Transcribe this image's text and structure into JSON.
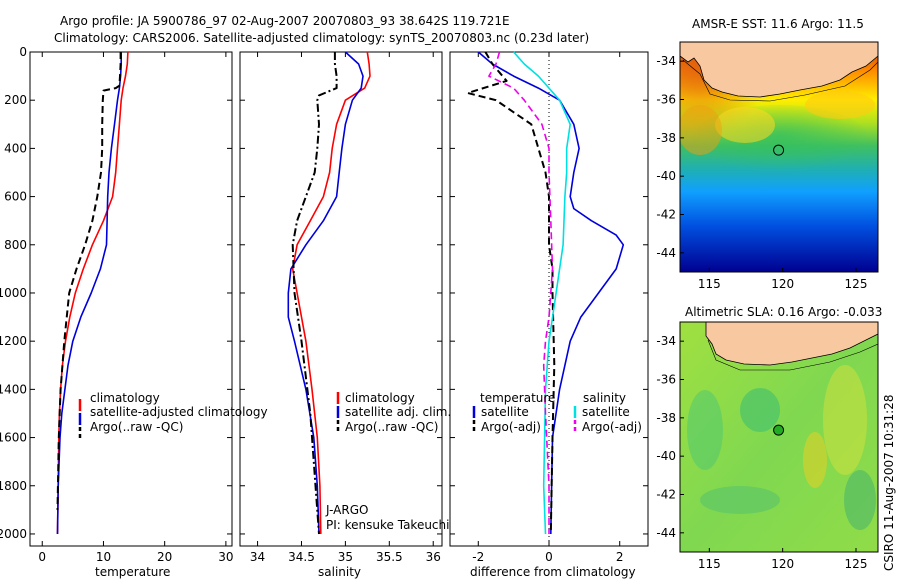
{
  "title": {
    "line1": "Argo profile: JA 5900786_97 02-Aug-2007 20070803_93 38.642S 119.721E",
    "line2": "Climatology: CARS2006. Satellite-adjusted climatology: synTS_20070803.nc (0.23d later)"
  },
  "side_label": "CSIRO 11-Aug-2007 10:31:28",
  "institution": {
    "line1": "J-ARGO",
    "line2": "PI: kensuke Takeuchi"
  },
  "chart_data": [
    {
      "id": "temperature",
      "type": "line",
      "xlabel": "temperature",
      "xlim": [
        -2,
        31
      ],
      "ylim": [
        2050,
        0
      ],
      "xticks": [
        0,
        10,
        20,
        30
      ],
      "yticks": [
        0,
        200,
        400,
        600,
        800,
        1000,
        1200,
        1400,
        1600,
        1800,
        2000
      ],
      "legend": {
        "placement": "lower-right",
        "entries": [
          "climatology",
          "satellite-adjusted climatology",
          "Argo(..raw -QC)"
        ]
      },
      "series": [
        {
          "name": "climatology",
          "color": "#ff0000",
          "dash": "solid",
          "x": [
            14.0,
            13.9,
            13.6,
            13.2,
            12.9,
            12.6,
            12.3,
            12.0,
            11.5,
            10.0,
            8.2,
            6.7,
            5.4,
            4.5,
            3.8,
            3.3,
            3.0,
            2.8,
            2.7,
            2.6,
            2.5
          ],
          "y": [
            0,
            50,
            100,
            150,
            200,
            300,
            400,
            500,
            600,
            700,
            800,
            900,
            1000,
            1100,
            1200,
            1300,
            1400,
            1500,
            1600,
            1800,
            2000
          ]
        },
        {
          "name": "satellite-adjusted climatology",
          "color": "#0000dd",
          "dash": "solid",
          "x": [
            12.9,
            12.9,
            12.8,
            12.6,
            12.3,
            11.8,
            11.3,
            10.9,
            10.7,
            10.6,
            10.5,
            9.5,
            8.0,
            6.3,
            5.0,
            4.2,
            3.7,
            3.2,
            2.9,
            2.6,
            2.5
          ],
          "y": [
            0,
            50,
            100,
            150,
            200,
            300,
            400,
            500,
            600,
            700,
            800,
            900,
            1000,
            1100,
            1200,
            1300,
            1400,
            1500,
            1600,
            1800,
            2000
          ]
        },
        {
          "name": "Argo(..raw -QC)",
          "color": "#000000",
          "dash": "dash",
          "x": [
            12.8,
            12.8,
            12.7,
            12.6,
            12.0,
            10.0,
            9.9,
            9.8,
            9.8,
            9.6,
            9.0,
            8.2,
            7.0,
            5.6,
            4.4,
            3.6,
            3.0,
            2.7,
            2.5
          ],
          "y": [
            0,
            50,
            100,
            140,
            150,
            160,
            200,
            300,
            400,
            500,
            600,
            700,
            800,
            900,
            1000,
            1200,
            1400,
            1600,
            1900
          ]
        }
      ]
    },
    {
      "id": "salinity",
      "type": "line",
      "xlabel": "salinity",
      "xlim": [
        33.8,
        36.1
      ],
      "ylim": [
        2050,
        0
      ],
      "xticks": [
        34,
        34.5,
        35,
        35.5,
        36
      ],
      "yticks": [
        0,
        200,
        400,
        600,
        800,
        1000,
        1200,
        1400,
        1600,
        1800,
        2000
      ],
      "legend": {
        "placement": "lower-right",
        "entries": [
          "climatology",
          "satellite adj. clim.",
          "Argo(..raw -QC)"
        ]
      },
      "series": [
        {
          "name": "climatology",
          "color": "#ff0000",
          "dash": "solid",
          "x": [
            35.25,
            35.27,
            35.28,
            35.22,
            35.0,
            34.9,
            34.85,
            34.82,
            34.75,
            34.6,
            34.45,
            34.4,
            34.45,
            34.55,
            34.62,
            34.68,
            34.71,
            34.72
          ],
          "y": [
            0,
            50,
            100,
            150,
            200,
            300,
            400,
            500,
            600,
            700,
            800,
            900,
            1000,
            1200,
            1400,
            1600,
            1800,
            2000
          ]
        },
        {
          "name": "satellite adj. clim.",
          "color": "#0000dd",
          "dash": "solid",
          "x": [
            35.0,
            35.15,
            35.2,
            35.18,
            35.08,
            35.0,
            34.96,
            34.93,
            34.9,
            34.75,
            34.55,
            34.38,
            34.35,
            34.35,
            34.42,
            34.55,
            34.64,
            34.68,
            34.7
          ],
          "y": [
            0,
            50,
            100,
            150,
            200,
            300,
            400,
            500,
            600,
            700,
            800,
            900,
            1000,
            1100,
            1200,
            1400,
            1600,
            1800,
            2000
          ]
        },
        {
          "name": "Argo(..raw -QC)",
          "color": "#000000",
          "dash": "dashdot",
          "x": [
            34.88,
            34.88,
            34.9,
            34.9,
            34.7,
            34.68,
            34.7,
            34.68,
            34.65,
            34.55,
            34.45,
            34.4,
            34.42,
            34.5,
            34.6,
            34.66,
            34.7
          ],
          "y": [
            0,
            50,
            100,
            150,
            180,
            200,
            300,
            400,
            500,
            600,
            700,
            800,
            1000,
            1200,
            1500,
            1800,
            2000
          ]
        }
      ]
    },
    {
      "id": "difference",
      "type": "line",
      "xlabel": "difference from climatology",
      "xlim": [
        -2.8,
        2.8
      ],
      "ylim": [
        2050,
        0
      ],
      "xticks": [
        -2,
        0,
        2
      ],
      "yticks": [
        0,
        200,
        400,
        600,
        800,
        1000,
        1200,
        1400,
        1600,
        1800,
        2000
      ],
      "zero_line": "dotted",
      "legend": {
        "placement": "lower-center",
        "columns": 2,
        "headers": [
          "temperature",
          "salinity"
        ],
        "entries": [
          "satellite",
          "Argo(-adj)",
          "satellite",
          "Argo(-adj)"
        ]
      },
      "series": [
        {
          "name": "satellite",
          "group": "temperature",
          "color": "#0000dd",
          "dash": "solid",
          "x": [
            -2.0,
            -1.6,
            -1.0,
            -0.3,
            0.3,
            0.7,
            0.85,
            0.7,
            0.6,
            0.7,
            1.2,
            1.9,
            2.1,
            1.9,
            1.4,
            0.9,
            0.6,
            0.3,
            0.1,
            0.05
          ],
          "y": [
            0,
            50,
            100,
            150,
            200,
            300,
            400,
            500,
            600,
            650,
            700,
            760,
            800,
            900,
            1000,
            1100,
            1200,
            1400,
            1600,
            2000
          ]
        },
        {
          "name": "Argo(-adj)",
          "group": "temperature",
          "color": "#000000",
          "dash": "dash",
          "x": [
            -1.8,
            -1.6,
            -1.2,
            -2.3,
            -1.5,
            -0.5,
            -0.3,
            -0.1,
            0.0,
            0.0,
            0.1,
            0.1,
            0.15,
            0.1,
            0.05
          ],
          "y": [
            0,
            50,
            120,
            170,
            200,
            300,
            400,
            500,
            600,
            800,
            900,
            1000,
            1300,
            1600,
            2000
          ]
        },
        {
          "name": "satellite",
          "group": "salinity",
          "color": "#00e0e0",
          "dash": "solid",
          "x": [
            -1.0,
            -0.7,
            -0.3,
            0.0,
            0.3,
            0.6,
            0.5,
            0.5,
            0.45,
            0.4,
            0.2,
            0.0,
            -0.1,
            -0.15,
            -0.1
          ],
          "y": [
            0,
            50,
            100,
            150,
            200,
            300,
            400,
            500,
            600,
            800,
            1000,
            1200,
            1400,
            1800,
            2000
          ]
        },
        {
          "name": "Argo(-adj)",
          "group": "salinity",
          "color": "#ee00ee",
          "dash": "dash",
          "x": [
            -1.4,
            -1.5,
            -1.7,
            -1.0,
            -0.7,
            -0.2,
            0.0,
            0.0,
            0.05,
            0.1,
            0.0,
            -0.1,
            -0.15,
            -0.1,
            0.0,
            0.0
          ],
          "y": [
            0,
            50,
            100,
            150,
            200,
            300,
            400,
            500,
            700,
            900,
            1100,
            1200,
            1300,
            1500,
            1800,
            2000
          ]
        }
      ]
    },
    {
      "id": "sst_map",
      "type": "heatmap",
      "title": "AMSR-E SST: 11.6 Argo: 11.5",
      "xlim": [
        113,
        126.5
      ],
      "ylim": [
        -45,
        -33
      ],
      "xticks": [
        115,
        120,
        125
      ],
      "yticks": [
        -34,
        -36,
        -38,
        -40,
        -42,
        -44
      ],
      "land_color": "#f8c8a0",
      "marker": {
        "lon": 119.721,
        "lat": -38.642,
        "fill": "none"
      }
    },
    {
      "id": "sla_map",
      "type": "heatmap",
      "title": "Altimetric SLA: 0.16 Argo: -0.033",
      "xlim": [
        113,
        126.5
      ],
      "ylim": [
        -45,
        -33
      ],
      "xticks": [
        115,
        120,
        125
      ],
      "yticks": [
        -34,
        -36,
        -38,
        -40,
        -42,
        -44
      ],
      "land_color": "#f8c8a0",
      "marker": {
        "lon": 119.721,
        "lat": -38.642,
        "fill": "#22aa22"
      }
    }
  ]
}
